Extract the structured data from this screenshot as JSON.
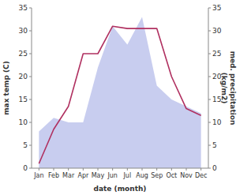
{
  "chart_data": {
    "type": "line",
    "categories": [
      "Jan",
      "Feb",
      "Mar",
      "Apr",
      "May",
      "Jun",
      "Jul",
      "Aug",
      "Sep",
      "Oct",
      "Nov",
      "Dec"
    ],
    "series": [
      {
        "type": "area",
        "axis": "y2",
        "color": "#b0b8e8",
        "values": [
          8.0,
          11.0,
          10.0,
          10.0,
          22.0,
          31.0,
          27.0,
          33.0,
          18.0,
          15.0,
          13.5,
          12.0
        ]
      },
      {
        "type": "line",
        "color": "#b03060",
        "values": [
          1.0,
          8.5,
          13.5,
          25.0,
          25.0,
          31.0,
          30.5,
          30.5,
          30.5,
          20.0,
          13.0,
          11.5
        ]
      }
    ],
    "xlabel": "date (month)",
    "ylabel": "max temp (C)",
    "y2label": "med. precipitation\n(kg/m2)",
    "ylim": [
      0,
      35
    ],
    "yticks": [
      0,
      5,
      10,
      15,
      20,
      25,
      30,
      35
    ],
    "y2lim": [
      0,
      35
    ],
    "y2ticks": [
      0,
      5,
      10,
      15,
      20,
      25,
      30,
      35
    ],
    "grid": false
  }
}
